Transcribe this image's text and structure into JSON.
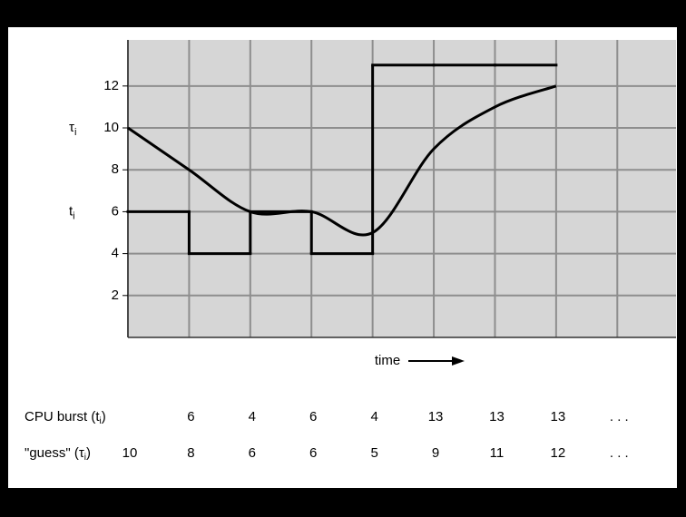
{
  "chart_data": {
    "type": "line",
    "ylim": [
      0,
      14.2
    ],
    "yticks": [
      2,
      4,
      6,
      8,
      10,
      12
    ],
    "xlim": [
      0,
      8.96
    ],
    "xgrid": [
      0,
      1,
      2,
      3,
      4,
      5,
      6,
      7,
      8
    ],
    "grid": true,
    "x_label": "time",
    "annotations": [
      {
        "text": "τ",
        "sub": "i",
        "y": 10
      },
      {
        "text": "t",
        "sub": "i",
        "y": 6
      }
    ],
    "series": [
      {
        "kind": "step",
        "color": "#000000",
        "x": [
          1,
          2,
          3,
          4,
          5,
          6,
          7
        ],
        "values": [
          6,
          4,
          6,
          4,
          13,
          13,
          13
        ]
      },
      {
        "kind": "smooth",
        "color": "#000000",
        "x": [
          0,
          1,
          2,
          3,
          4,
          5,
          6,
          7
        ],
        "values": [
          10,
          8,
          6,
          6,
          5,
          9,
          11,
          12
        ]
      }
    ],
    "table": {
      "rows": [
        {
          "label": "CPU burst (t",
          "sub": "i",
          "end": ")",
          "series": 0
        },
        {
          "label": "\"guess\" (τ",
          "sub": "i",
          "end": ")",
          "series": 1
        }
      ],
      "ellipsis": ". . .",
      "ellipsis_x": 8
    }
  }
}
